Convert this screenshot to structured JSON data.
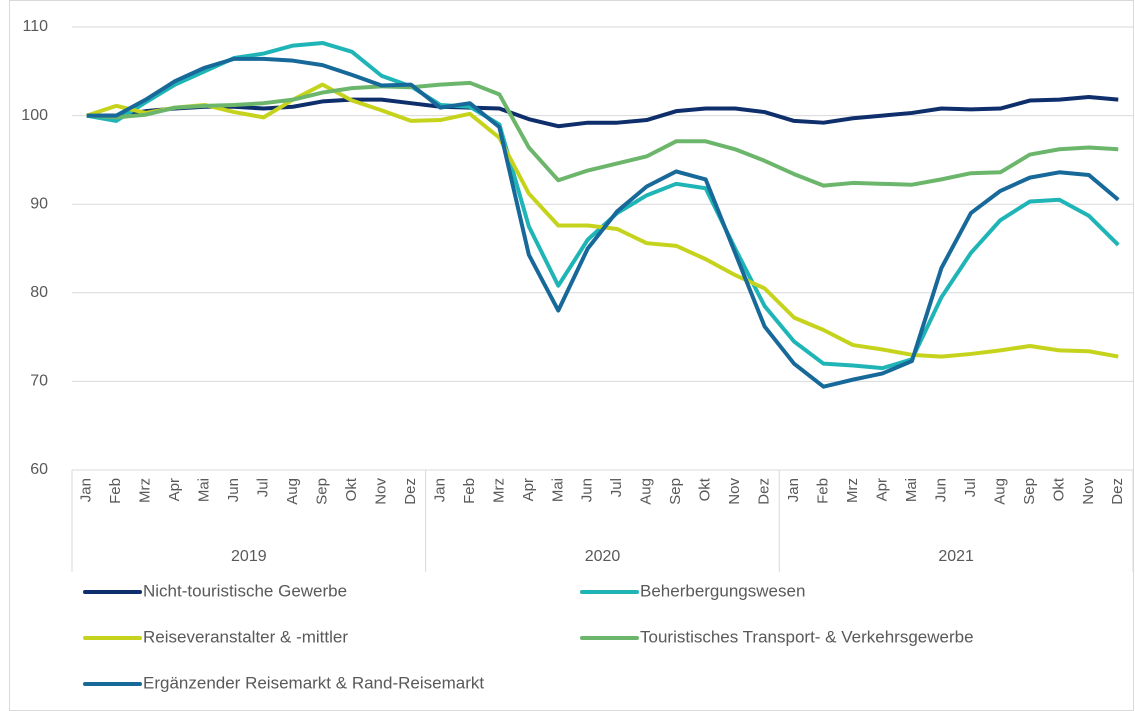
{
  "chart_data": {
    "type": "line",
    "categories": [
      "Jan",
      "Feb",
      "Mrz",
      "Apr",
      "Mai",
      "Jun",
      "Jul",
      "Aug",
      "Sep",
      "Okt",
      "Nov",
      "Dez",
      "Jan",
      "Feb",
      "Mrz",
      "Apr",
      "Mai",
      "Jun",
      "Jul",
      "Aug",
      "Sep",
      "Okt",
      "Nov",
      "Dez",
      "Jan",
      "Feb",
      "Mrz",
      "Apr",
      "Mai",
      "Jun",
      "Jul",
      "Aug",
      "Sep",
      "Okt",
      "Nov",
      "Dez"
    ],
    "groups": [
      "2019",
      "2020",
      "2021"
    ],
    "ylim": [
      60,
      110
    ],
    "yticks": [
      60,
      70,
      80,
      90,
      100,
      110
    ],
    "grid": true,
    "series": [
      {
        "name": "Nicht-touristische Gewerbe",
        "color": "#0e2f6b",
        "values": [
          100,
          100,
          100.5,
          100.8,
          101,
          101,
          100.8,
          101,
          101.6,
          101.8,
          101.8,
          101.4,
          101,
          100.9,
          100.8,
          99.6,
          98.8,
          99.2,
          99.2,
          99.5,
          100.5,
          100.8,
          100.8,
          100.4,
          99.4,
          99.2,
          99.7,
          100,
          100.3,
          100.8,
          100.7,
          100.8,
          101.7,
          101.8,
          102.1,
          101.8
        ]
      },
      {
        "name": "Beherbergungswesen",
        "color": "#1fb5b7",
        "values": [
          100,
          99.4,
          101.5,
          103.5,
          105,
          106.5,
          107,
          107.9,
          108.2,
          107.2,
          104.5,
          103.3,
          101.2,
          101,
          99,
          87.5,
          80.8,
          86,
          89,
          91,
          92.3,
          91.8,
          85,
          78.5,
          74.5,
          72,
          71.8,
          71.5,
          72.5,
          79.5,
          84.5,
          88.2,
          90.3,
          90.5,
          88.7,
          85.4
        ]
      },
      {
        "name": "Reiseveranstalter & -mittler",
        "color": "#c6d31c",
        "values": [
          100,
          101.1,
          100.3,
          100.9,
          101.2,
          100.4,
          99.8,
          101.8,
          103.5,
          101.7,
          100.6,
          99.4,
          99.5,
          100.2,
          97.5,
          91.2,
          87.6,
          87.6,
          87.2,
          85.6,
          85.3,
          83.8,
          82,
          80.5,
          77.2,
          75.8,
          74.1,
          73.6,
          73,
          72.8,
          73.1,
          73.5,
          74,
          73.5,
          73.4,
          72.8
        ]
      },
      {
        "name": "Touristisches Transport- & Verkehrsgewerbe",
        "color": "#6cb66c",
        "values": [
          100,
          99.8,
          100.1,
          100.9,
          101.1,
          101.2,
          101.4,
          101.8,
          102.6,
          103.1,
          103.3,
          103.2,
          103.5,
          103.7,
          102.4,
          96.4,
          92.7,
          93.8,
          94.6,
          95.4,
          97.1,
          97.1,
          96.2,
          94.9,
          93.4,
          92.1,
          92.4,
          92.3,
          92.2,
          92.8,
          93.5,
          93.6,
          95.6,
          96.2,
          96.4,
          96.2
        ]
      },
      {
        "name": "Ergänzender Reisemarkt & Rand-Reisemarkt",
        "color": "#17699a",
        "values": [
          100,
          100,
          101.8,
          103.9,
          105.4,
          106.4,
          106.4,
          106.2,
          105.7,
          104.6,
          103.4,
          103.5,
          100.9,
          101.4,
          98.7,
          84.3,
          78,
          85,
          89.2,
          92,
          93.7,
          92.8,
          84.5,
          76.2,
          72,
          69.4,
          70.2,
          70.9,
          72.3,
          82.8,
          89,
          91.5,
          93,
          93.6,
          93.3,
          90.5
        ]
      }
    ]
  }
}
